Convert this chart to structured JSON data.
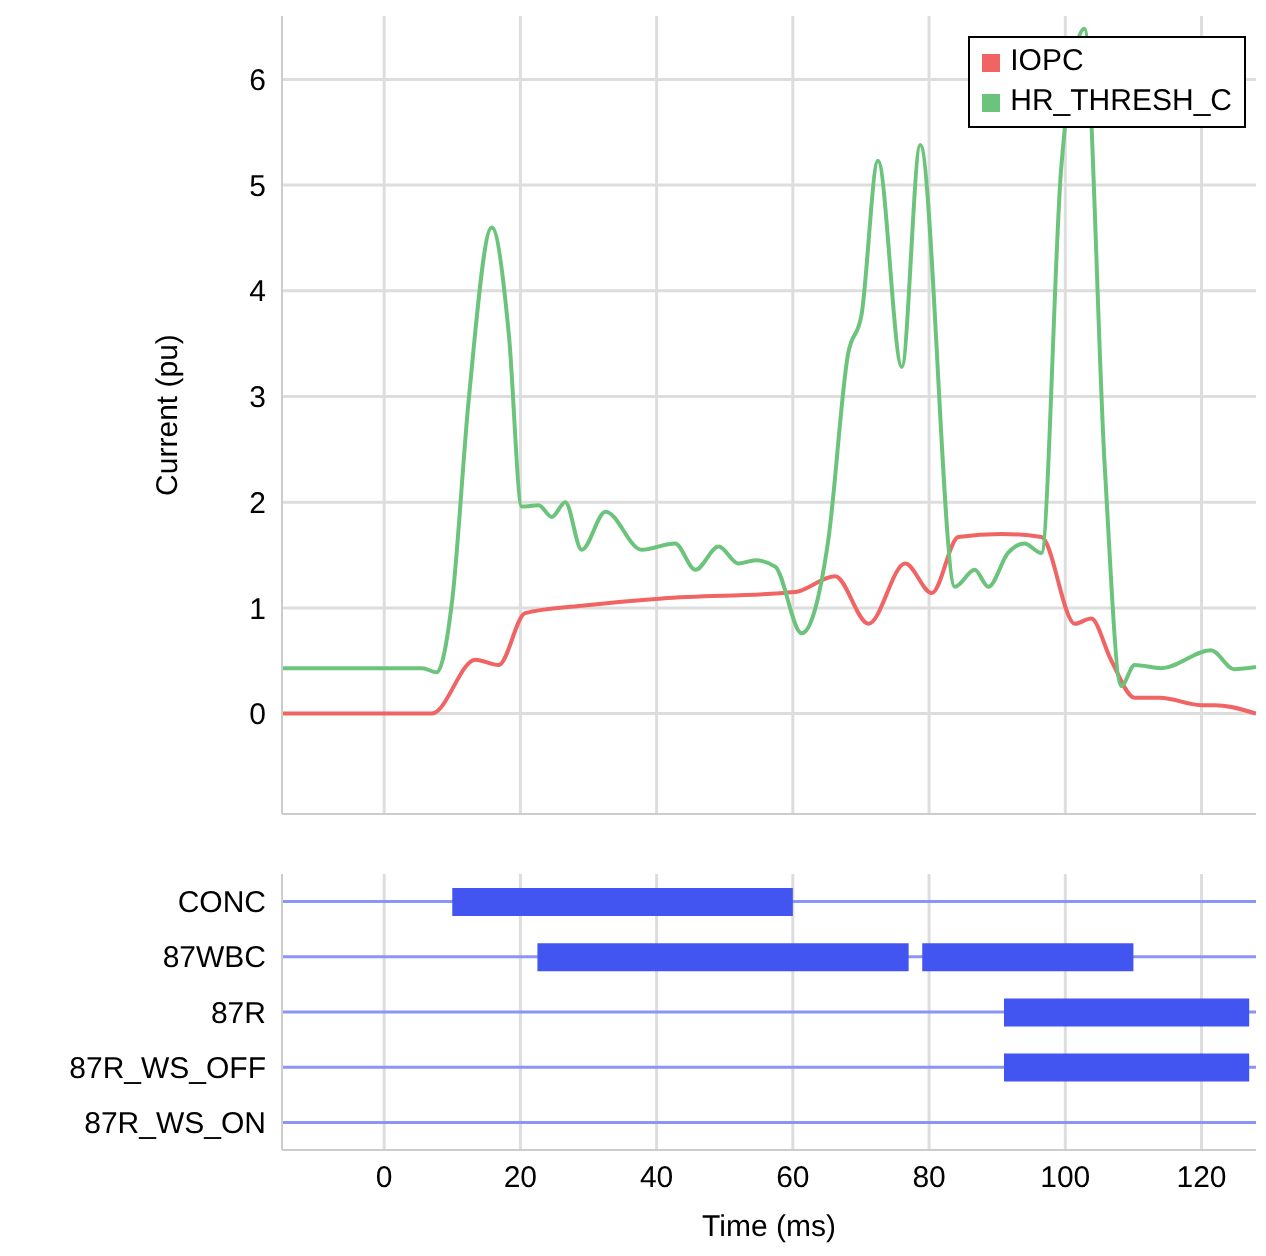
{
  "chart_data": [
    {
      "type": "line",
      "ylabel": "Current (pu)",
      "xlim": [
        -15,
        128
      ],
      "xticks": [
        0,
        20,
        40,
        60,
        80,
        100,
        120
      ],
      "ylim": [
        -0.95,
        6.6
      ],
      "yticks": [
        0,
        1,
        2,
        3,
        4,
        5,
        6
      ],
      "tick_labels": "y",
      "grid": true,
      "legend": "top right",
      "marker": "none",
      "series": [
        {
          "name": "IOPC",
          "color": "#f06464",
          "x": [
            -15,
            7,
            13.4,
            16.8,
            20.7,
            29,
            40.8,
            60.3,
            66.2,
            71.1,
            76.5,
            80.4,
            84.3,
            90.6,
            96.5,
            101.4,
            103.8,
            106.7,
            110.2,
            113.9,
            119.9,
            122,
            128
          ],
          "values": [
            0,
            0,
            0.51,
            0.46,
            0.95,
            1.02,
            1.09,
            1.15,
            1.3,
            0.85,
            1.42,
            1.14,
            1.67,
            1.7,
            1.67,
            0.85,
            0.9,
            0.51,
            0.15,
            0.15,
            0.08,
            0.08,
            0
          ]
        },
        {
          "name": "HR_THRESH_C",
          "color": "#6cc47c",
          "x": [
            -15,
            5.6,
            7.7,
            10,
            12.4,
            15.8,
            18.3,
            20.2,
            22.7,
            24.6,
            26.6,
            29,
            32.5,
            37.8,
            42.7,
            45.7,
            49.1,
            52,
            54.5,
            57.4,
            61.3,
            65.2,
            68.1,
            70.1,
            72.5,
            76,
            78.7,
            83.8,
            86.7,
            88.7,
            91.6,
            94,
            96.5,
            99.4,
            102.8,
            105.8,
            108.2,
            110.2,
            114.1,
            121.4,
            124.8,
            128
          ],
          "values": [
            0.43,
            0.43,
            0.39,
            1.08,
            2.96,
            4.6,
            3.59,
            1.96,
            1.97,
            1.86,
            2.0,
            1.55,
            1.91,
            1.55,
            1.61,
            1.36,
            1.58,
            1.42,
            1.45,
            1.39,
            0.76,
            1.64,
            3.4,
            3.78,
            5.23,
            3.28,
            5.38,
            1.2,
            1.36,
            1.2,
            1.52,
            1.61,
            1.52,
            5.16,
            6.48,
            2.33,
            0.26,
            0.46,
            0.43,
            0.6,
            0.42,
            0.44
          ]
        }
      ]
    },
    {
      "type": "bar",
      "orientation": "horizontal",
      "xlabel": "Time (ms)",
      "categories": [
        "CONC",
        "87WBC",
        "87R",
        "87R_WS_OFF",
        "87R_WS_ON"
      ],
      "xlim": [
        -15,
        128
      ],
      "xticks": [
        0,
        20,
        40,
        60,
        80,
        100,
        120
      ],
      "grid": true,
      "series": [
        {
          "color": "#4255f0",
          "base": [
            10,
            22.5,
            91,
            91,
            null
          ],
          "values": [
            50,
            54.5,
            36,
            36,
            null
          ]
        },
        {
          "color": "#4255f0",
          "base": [
            null,
            79,
            null,
            null,
            null
          ],
          "values": [
            null,
            31,
            null,
            null,
            null
          ]
        }
      ]
    }
  ]
}
